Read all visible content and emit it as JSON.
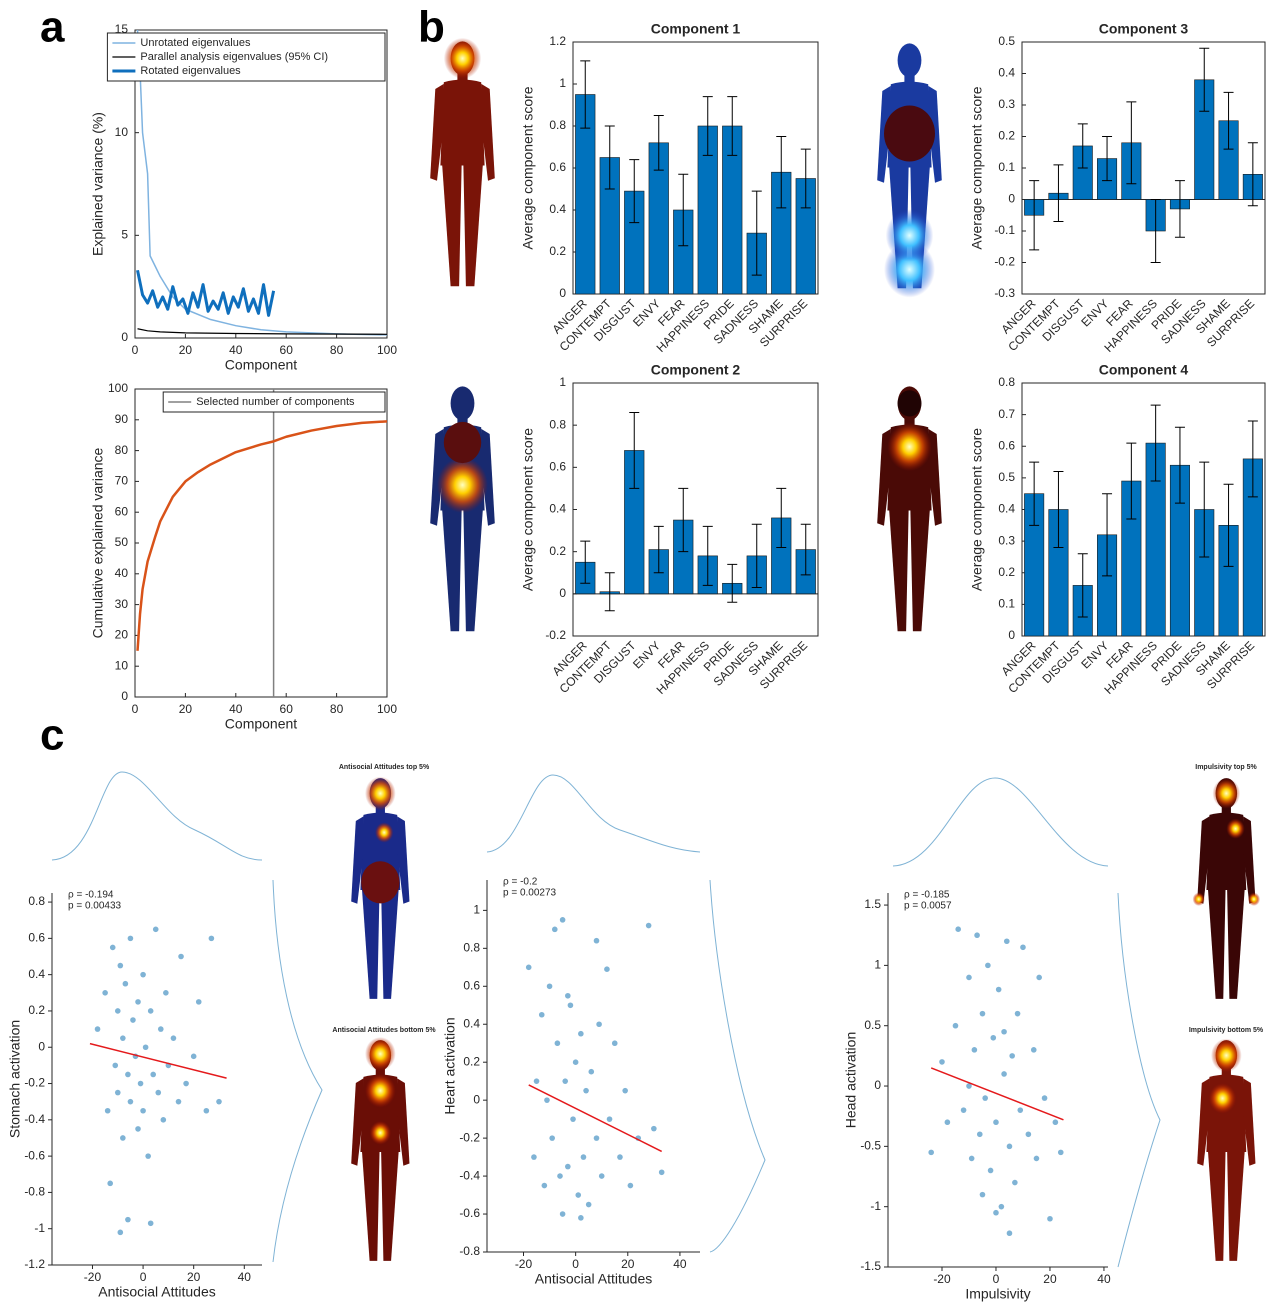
{
  "figure_labels": {
    "panels": [
      "a",
      "b",
      "c"
    ],
    "body_captions": [
      "Antisocial Attitudes top 5%",
      "Antisocial Attitudes bottom 5%",
      "Impulsivity top 5%",
      "Impulsivity bottom 5%"
    ]
  },
  "chart_data": [
    {
      "type": "line",
      "xlabel": "Component",
      "ylabel": "Explained variance (%)",
      "xlim": [
        0,
        100
      ],
      "ylim": [
        0,
        15
      ],
      "xticks": [
        0,
        20,
        40,
        60,
        80,
        100
      ],
      "yticks": [
        0,
        5,
        10,
        15
      ],
      "legend": "upper right",
      "series": [
        {
          "name": "Unrotated eigenvalues",
          "color": "#7fb3e0",
          "line_width": 1.5,
          "x": [
            1,
            2,
            3,
            4,
            5,
            6,
            8,
            10,
            15,
            20,
            30,
            40,
            50,
            60,
            80,
            100
          ],
          "values": [
            15,
            13,
            10,
            9,
            8,
            4,
            3.5,
            3,
            2,
            1.4,
            0.9,
            0.6,
            0.4,
            0.3,
            0.2,
            0.15
          ]
        },
        {
          "name": "Parallel analysis eigenvalues (95% CI)",
          "color": "#000000",
          "line_width": 1.2,
          "x": [
            1,
            5,
            10,
            20,
            40,
            60,
            100
          ],
          "values": [
            0.45,
            0.35,
            0.3,
            0.25,
            0.22,
            0.2,
            0.18
          ]
        },
        {
          "name": "Rotated eigenvalues",
          "color": "#0f6fbd",
          "line_width": 3,
          "x": [
            1,
            3,
            5,
            7,
            9,
            11,
            13,
            15,
            17,
            19,
            21,
            23,
            25,
            27,
            29,
            31,
            33,
            35,
            37,
            39,
            41,
            43,
            45,
            47,
            49,
            51,
            53,
            55
          ],
          "values": [
            3.3,
            2.1,
            1.7,
            2.3,
            1.5,
            2.0,
            1.4,
            2.5,
            1.6,
            1.9,
            1.2,
            2.2,
            1.5,
            2.6,
            1.3,
            1.8,
            1.4,
            2.2,
            1.2,
            2.0,
            1.5,
            2.4,
            1.3,
            1.9,
            1.2,
            2.6,
            1.1,
            2.3
          ]
        }
      ]
    },
    {
      "type": "line",
      "xlabel": "Component",
      "ylabel": "Cumulative explained variance",
      "xlim": [
        0,
        100
      ],
      "ylim": [
        0,
        100
      ],
      "xticks": [
        0,
        20,
        40,
        60,
        80,
        100
      ],
      "yticks": [
        0,
        10,
        20,
        30,
        40,
        50,
        60,
        70,
        80,
        90,
        100
      ],
      "legend": "upper right",
      "series": [
        {
          "name": "Selected number of components",
          "color": "#808080",
          "line_width": 1.5,
          "x": [
            55,
            55
          ],
          "values": [
            0,
            100
          ]
        },
        {
          "name": null,
          "color": "#d95319",
          "line_width": 2.5,
          "x": [
            1,
            2,
            3,
            5,
            8,
            10,
            15,
            20,
            25,
            30,
            40,
            50,
            55,
            60,
            70,
            80,
            90,
            100
          ],
          "values": [
            15,
            27,
            35,
            44,
            52,
            57,
            65,
            70,
            73,
            75.5,
            79.5,
            82,
            83,
            84.5,
            86.5,
            88,
            89,
            89.5
          ]
        }
      ]
    },
    {
      "type": "bar",
      "title": "Component 1",
      "ylabel": "Average component score",
      "color": "#0072bd",
      "categories": [
        "ANGER",
        "CONTEMPT",
        "DISGUST",
        "ENVY",
        "FEAR",
        "HAPPINESS",
        "PRIDE",
        "SADNESS",
        "SHAME",
        "SURPRISE"
      ],
      "values": [
        0.95,
        0.65,
        0.49,
        0.72,
        0.4,
        0.8,
        0.8,
        0.29,
        0.58,
        0.55
      ],
      "errors": [
        0.16,
        0.15,
        0.15,
        0.13,
        0.17,
        0.14,
        0.14,
        0.2,
        0.17,
        0.14
      ],
      "ylim": [
        0,
        1.2
      ],
      "yticks": [
        0,
        0.2,
        0.4,
        0.6,
        0.8,
        1,
        1.2
      ]
    },
    {
      "type": "bar",
      "title": "Component 3",
      "ylabel": "Average component score",
      "color": "#0072bd",
      "categories": [
        "ANGER",
        "CONTEMPT",
        "DISGUST",
        "ENVY",
        "FEAR",
        "HAPPINESS",
        "PRIDE",
        "SADNESS",
        "SHAME",
        "SURPRISE"
      ],
      "values": [
        -0.05,
        0.02,
        0.17,
        0.13,
        0.18,
        -0.1,
        -0.03,
        0.38,
        0.25,
        0.08
      ],
      "errors": [
        0.11,
        0.09,
        0.07,
        0.07,
        0.13,
        0.1,
        0.09,
        0.1,
        0.09,
        0.1
      ],
      "ylim": [
        -0.3,
        0.5
      ],
      "yticks": [
        -0.3,
        -0.2,
        -0.1,
        0,
        0.1,
        0.2,
        0.3,
        0.4,
        0.5
      ]
    },
    {
      "type": "bar",
      "title": "Component 2",
      "ylabel": "Average component score",
      "color": "#0072bd",
      "categories": [
        "ANGER",
        "CONTEMPT",
        "DISGUST",
        "ENVY",
        "FEAR",
        "HAPPINESS",
        "PRIDE",
        "SADNESS",
        "SHAME",
        "SURPRISE"
      ],
      "values": [
        0.15,
        0.01,
        0.68,
        0.21,
        0.35,
        0.18,
        0.05,
        0.18,
        0.36,
        0.21
      ],
      "errors": [
        0.1,
        0.09,
        0.18,
        0.11,
        0.15,
        0.14,
        0.09,
        0.15,
        0.14,
        0.12
      ],
      "ylim": [
        -0.2,
        1
      ],
      "yticks": [
        -0.2,
        0,
        0.2,
        0.4,
        0.6,
        0.8,
        1
      ]
    },
    {
      "type": "bar",
      "title": "Component 4",
      "ylabel": "Average component score",
      "color": "#0072bd",
      "categories": [
        "ANGER",
        "CONTEMPT",
        "DISGUST",
        "ENVY",
        "FEAR",
        "HAPPINESS",
        "PRIDE",
        "SADNESS",
        "SHAME",
        "SURPRISE"
      ],
      "values": [
        0.45,
        0.4,
        0.16,
        0.32,
        0.49,
        0.61,
        0.54,
        0.4,
        0.35,
        0.56
      ],
      "errors": [
        0.1,
        0.12,
        0.1,
        0.13,
        0.12,
        0.12,
        0.12,
        0.15,
        0.13,
        0.12
      ],
      "ylim": [
        0,
        0.8
      ],
      "yticks": [
        0,
        0.1,
        0.2,
        0.3,
        0.4,
        0.5,
        0.6,
        0.7,
        0.8
      ]
    },
    {
      "type": "scatter",
      "xlabel": "Antisocial Attitudes",
      "ylabel": "Stomach activation",
      "color": "#7fb3d5",
      "annotations": [
        "ρ = -0.194",
        "p = 0.00433"
      ],
      "x": [
        -18,
        -15,
        -14,
        -12,
        -11,
        -10,
        -10,
        -9,
        -8,
        -8,
        -7,
        -6,
        -5,
        -5,
        -4,
        -3,
        -2,
        -2,
        -1,
        0,
        0,
        1,
        2,
        3,
        4,
        5,
        6,
        7,
        8,
        9,
        10,
        12,
        14,
        15,
        17,
        20,
        22,
        25,
        27,
        30,
        -13,
        -6,
        3,
        -9
      ],
      "values": [
        0.1,
        0.3,
        -0.35,
        0.55,
        -0.1,
        0.2,
        -0.25,
        0.45,
        -0.5,
        0.05,
        0.35,
        -0.15,
        0.6,
        -0.3,
        0.15,
        -0.05,
        -0.45,
        0.25,
        -0.2,
        0.4,
        -0.35,
        0.0,
        -0.6,
        0.2,
        -0.15,
        0.65,
        -0.25,
        0.1,
        -0.4,
        0.3,
        -0.1,
        0.05,
        -0.3,
        0.5,
        -0.2,
        -0.05,
        0.25,
        -0.35,
        0.6,
        -0.3,
        -0.75,
        -0.95,
        -0.97,
        -1.02
      ],
      "fit": {
        "color": "#e41a1c",
        "x": [
          -21,
          33
        ],
        "values": [
          0.02,
          -0.17
        ]
      },
      "xlim": [
        -36,
        47
      ],
      "ylim": [
        -1.2,
        0.85
      ],
      "xticks": [
        -20,
        0,
        20,
        40
      ],
      "yticks": [
        -1.2,
        -1,
        -0.8,
        -0.6,
        -0.4,
        -0.2,
        0,
        0.2,
        0.4,
        0.6,
        0.8
      ]
    },
    {
      "type": "scatter",
      "xlabel": "Antisocial Attitudes",
      "ylabel": "Heart activation",
      "color": "#7fb3d5",
      "annotations": [
        "ρ = -0.2",
        "p = 0.00273"
      ],
      "x": [
        -18,
        -16,
        -15,
        -13,
        -12,
        -10,
        -9,
        -8,
        -7,
        -6,
        -5,
        -4,
        -3,
        -2,
        -1,
        0,
        1,
        2,
        3,
        4,
        5,
        6,
        8,
        9,
        10,
        12,
        13,
        15,
        17,
        19,
        21,
        24,
        28,
        30,
        33,
        -5,
        -3,
        8,
        -11,
        2
      ],
      "values": [
        0.7,
        -0.3,
        0.1,
        0.45,
        -0.45,
        0.6,
        -0.2,
        0.9,
        0.3,
        -0.4,
        0.95,
        0.1,
        -0.35,
        0.5,
        -0.1,
        0.2,
        -0.5,
        0.35,
        -0.3,
        0.05,
        -0.55,
        0.15,
        -0.2,
        0.4,
        -0.4,
        0.69,
        -0.1,
        0.3,
        -0.3,
        0.05,
        -0.45,
        -0.2,
        0.92,
        -0.15,
        -0.38,
        -0.6,
        0.55,
        0.84,
        0.0,
        -0.62
      ],
      "fit": {
        "color": "#e41a1c",
        "x": [
          -18,
          33
        ],
        "values": [
          0.08,
          -0.27
        ]
      },
      "xlim": [
        -34,
        47.7
      ],
      "ylim": [
        -0.8,
        1.16
      ],
      "xticks": [
        -20,
        0,
        20,
        40
      ],
      "yticks": [
        -0.8,
        -0.6,
        -0.4,
        -0.2,
        0,
        0.2,
        0.4,
        0.6,
        0.8,
        1
      ]
    },
    {
      "type": "scatter",
      "xlabel": "Impulsivity",
      "ylabel": "Head activation",
      "color": "#7fb3d5",
      "annotations": [
        "ρ = -0.185",
        "p = 0.0057"
      ],
      "x": [
        -24,
        -20,
        -18,
        -15,
        -14,
        -12,
        -10,
        -9,
        -8,
        -7,
        -6,
        -5,
        -4,
        -3,
        -2,
        -1,
        0,
        1,
        2,
        3,
        4,
        5,
        6,
        7,
        8,
        9,
        10,
        12,
        14,
        15,
        16,
        18,
        20,
        22,
        24,
        -5,
        0,
        5,
        -10,
        3
      ],
      "values": [
        -0.55,
        0.2,
        -0.3,
        0.5,
        1.3,
        -0.2,
        0.9,
        -0.6,
        0.3,
        1.25,
        -0.4,
        0.6,
        -0.1,
        1.0,
        -0.7,
        0.4,
        -0.3,
        0.8,
        -1.0,
        0.1,
        1.2,
        -0.5,
        0.25,
        -0.8,
        0.6,
        -0.2,
        1.15,
        -0.4,
        0.3,
        -0.6,
        0.9,
        -0.1,
        -1.1,
        -0.3,
        -0.55,
        -0.9,
        -1.05,
        -1.22,
        0.0,
        0.45
      ],
      "fit": {
        "color": "#e41a1c",
        "x": [
          -24,
          25
        ],
        "values": [
          0.15,
          -0.28
        ]
      },
      "xlim": [
        -40,
        41.5
      ],
      "ylim": [
        -1.5,
        1.6
      ],
      "xticks": [
        -20,
        0,
        20,
        40
      ],
      "yticks": [
        -1.5,
        -1,
        -0.5,
        0,
        0.5,
        1,
        1.5
      ]
    }
  ]
}
